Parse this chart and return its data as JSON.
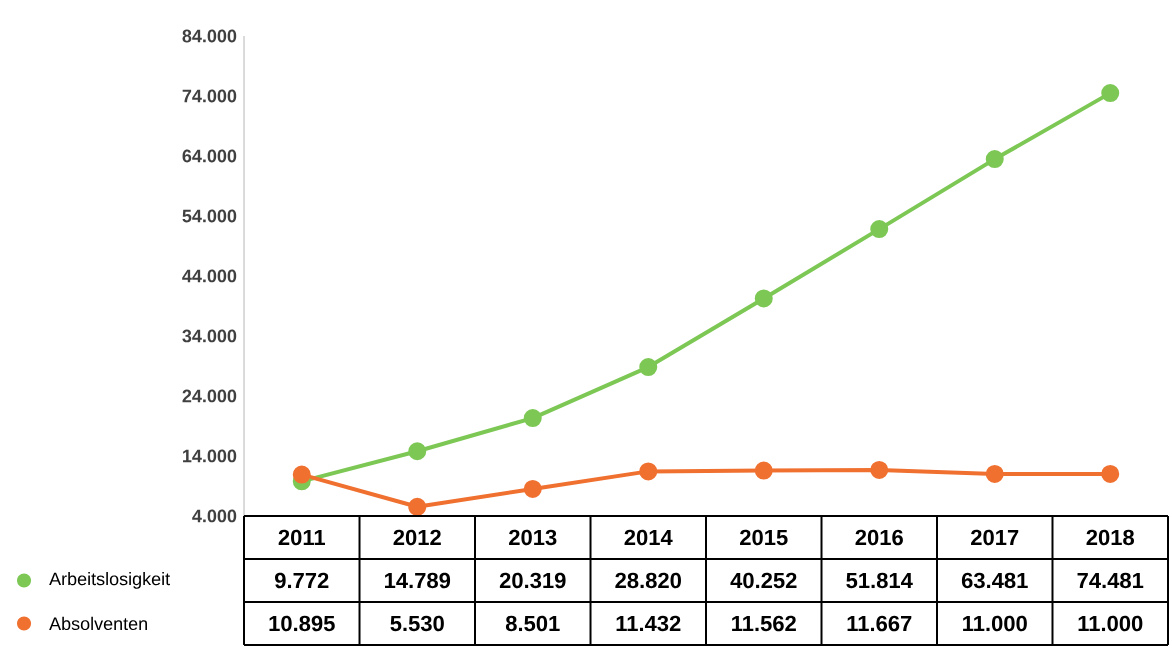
{
  "chart_data": {
    "type": "line",
    "categories": [
      "2011",
      "2012",
      "2013",
      "2014",
      "2015",
      "2016",
      "2017",
      "2018"
    ],
    "series": [
      {
        "name": "Arbeitslosigkeit",
        "color": "#7dc855",
        "values": [
          9772,
          14789,
          20319,
          28820,
          40252,
          51814,
          63481,
          74481
        ],
        "value_labels": [
          "9.772",
          "14.789",
          "20.319",
          "28.820",
          "40.252",
          "51.814",
          "63.481",
          "74.481"
        ]
      },
      {
        "name": "Absolventen",
        "color": "#f07030",
        "values": [
          10895,
          5530,
          8501,
          11432,
          11562,
          11667,
          11000,
          11000
        ],
        "value_labels": [
          "10.895",
          "5.530",
          "8.501",
          "11.432",
          "11.562",
          "11.667",
          "11.000",
          "11.000"
        ]
      }
    ],
    "ylim": [
      4000,
      84000
    ],
    "yticks": [
      {
        "value": 4000,
        "label": "4.000"
      },
      {
        "value": 14000,
        "label": "14.000"
      },
      {
        "value": 24000,
        "label": "24.000"
      },
      {
        "value": 34000,
        "label": "34.000"
      },
      {
        "value": 44000,
        "label": "44.000"
      },
      {
        "value": 54000,
        "label": "54.000"
      },
      {
        "value": 64000,
        "label": "64.000"
      },
      {
        "value": 74000,
        "label": "74.000"
      },
      {
        "value": 84000,
        "label": "84.000"
      }
    ],
    "grid": false,
    "legend": "bottom left",
    "marker": "circle",
    "line_style": "solid"
  }
}
